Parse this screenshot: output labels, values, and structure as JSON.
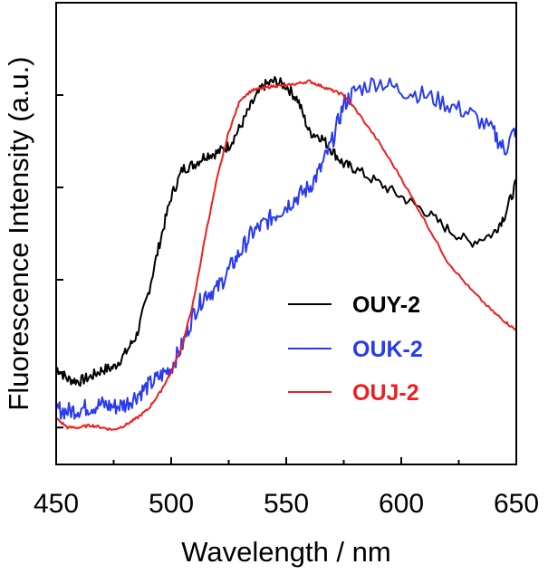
{
  "chart_data": {
    "type": "line",
    "xlabel": "Wavelength / nm",
    "ylabel": "Fluorescence Intensity (a.u.)",
    "xlim": [
      450,
      650
    ],
    "ylim": [
      0,
      1
    ],
    "xticks": [
      450,
      500,
      550,
      600,
      650
    ],
    "yticks_unlabeled": [
      0.08,
      0.2,
      0.4,
      0.6,
      0.8,
      1.0
    ],
    "legend_position": "lower-right",
    "series": [
      {
        "name": "OUY-2",
        "color": "#000000",
        "x": [
          450,
          455,
          460,
          465,
          470,
          475,
          480,
          485,
          490,
          495,
          500,
          505,
          510,
          515,
          520,
          525,
          530,
          535,
          540,
          545,
          550,
          555,
          560,
          565,
          570,
          575,
          580,
          590,
          600,
          610,
          620,
          630,
          640,
          645,
          650
        ],
        "y": [
          0.21,
          0.185,
          0.18,
          0.19,
          0.205,
          0.21,
          0.24,
          0.28,
          0.37,
          0.48,
          0.58,
          0.64,
          0.65,
          0.67,
          0.675,
          0.69,
          0.73,
          0.78,
          0.82,
          0.83,
          0.82,
          0.79,
          0.72,
          0.71,
          0.68,
          0.65,
          0.64,
          0.61,
          0.58,
          0.55,
          0.51,
          0.48,
          0.5,
          0.54,
          0.61
        ]
      },
      {
        "name": "OUK-2",
        "color": "#2a3bee",
        "x": [
          450,
          455,
          460,
          465,
          470,
          475,
          480,
          485,
          490,
          495,
          500,
          505,
          510,
          515,
          520,
          525,
          530,
          535,
          540,
          545,
          550,
          555,
          560,
          565,
          570,
          575,
          580,
          590,
          600,
          610,
          620,
          630,
          640,
          645,
          650
        ],
        "y": [
          0.12,
          0.115,
          0.12,
          0.125,
          0.13,
          0.125,
          0.13,
          0.15,
          0.17,
          0.19,
          0.21,
          0.26,
          0.33,
          0.37,
          0.38,
          0.42,
          0.46,
          0.5,
          0.52,
          0.54,
          0.56,
          0.58,
          0.6,
          0.64,
          0.7,
          0.78,
          0.81,
          0.83,
          0.81,
          0.8,
          0.78,
          0.76,
          0.72,
          0.68,
          0.73
        ]
      },
      {
        "name": "OUJ-2",
        "color": "#ee1f1f",
        "x": [
          450,
          455,
          460,
          465,
          470,
          475,
          480,
          485,
          490,
          495,
          500,
          505,
          510,
          515,
          520,
          525,
          530,
          535,
          540,
          545,
          550,
          555,
          560,
          565,
          570,
          575,
          580,
          590,
          600,
          610,
          620,
          630,
          640,
          645,
          650
        ],
        "y": [
          0.1,
          0.08,
          0.08,
          0.085,
          0.08,
          0.075,
          0.085,
          0.1,
          0.12,
          0.155,
          0.2,
          0.26,
          0.36,
          0.5,
          0.62,
          0.72,
          0.79,
          0.81,
          0.815,
          0.82,
          0.82,
          0.825,
          0.83,
          0.82,
          0.81,
          0.8,
          0.77,
          0.7,
          0.62,
          0.53,
          0.44,
          0.38,
          0.33,
          0.31,
          0.29
        ]
      }
    ]
  }
}
